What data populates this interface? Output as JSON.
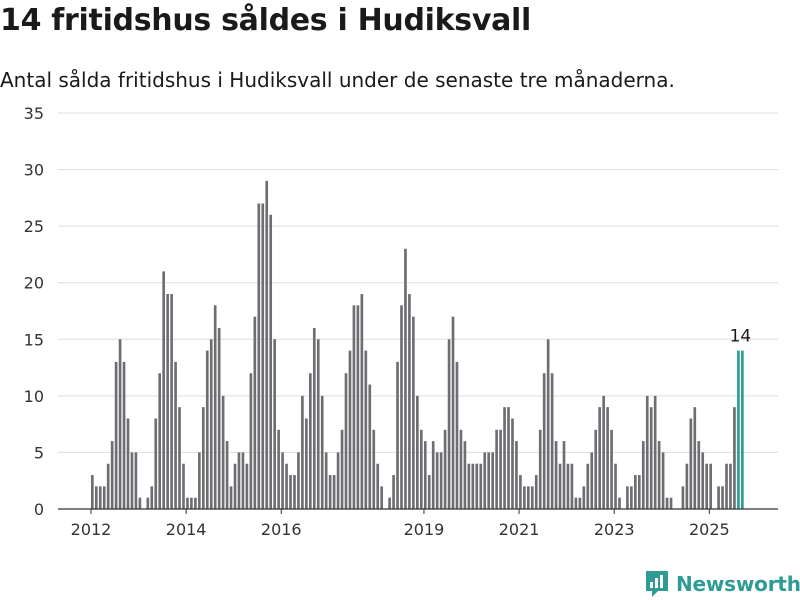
{
  "title": "14 fritidshus såldes i Hudiksvall",
  "subtitle": "Antal sålda fritidshus i Hudiksvall under de senaste tre månaderna.",
  "brand": "Newsworthy",
  "colors": {
    "bar": "#6e6d72",
    "highlight": "#2a9d97",
    "grid": "#dddddd",
    "brand": "#2e9c95"
  },
  "chart_data": {
    "type": "bar",
    "title": "14 fritidshus såldes i Hudiksvall",
    "subtitle": "Antal sålda fritidshus i Hudiksvall under de senaste tre månaderna.",
    "xlabel": "",
    "ylabel": "",
    "ylim": [
      0,
      35
    ],
    "yticks": [
      0,
      5,
      10,
      15,
      20,
      25,
      30,
      35
    ],
    "xticks": [
      "2012",
      "2014",
      "2016",
      "2019",
      "2021",
      "2023",
      "2025"
    ],
    "grid": true,
    "period": "monthly, rolling 3 months",
    "start": "2012-01",
    "values": [
      3,
      2,
      2,
      2,
      4,
      6,
      13,
      15,
      13,
      8,
      5,
      5,
      1,
      0,
      1,
      2,
      8,
      12,
      21,
      19,
      19,
      13,
      9,
      4,
      1,
      1,
      1,
      5,
      9,
      14,
      15,
      18,
      16,
      10,
      6,
      2,
      4,
      5,
      5,
      4,
      12,
      17,
      27,
      27,
      29,
      26,
      15,
      7,
      5,
      4,
      3,
      3,
      5,
      10,
      8,
      12,
      16,
      15,
      10,
      5,
      3,
      3,
      5,
      7,
      12,
      14,
      18,
      18,
      19,
      14,
      11,
      7,
      4,
      2,
      0,
      1,
      3,
      13,
      18,
      23,
      19,
      17,
      10,
      7,
      6,
      3,
      6,
      5,
      5,
      7,
      15,
      17,
      13,
      7,
      6,
      4,
      4,
      4,
      4,
      5,
      5,
      5,
      7,
      7,
      9,
      9,
      8,
      6,
      3,
      2,
      2,
      2,
      3,
      7,
      12,
      15,
      12,
      6,
      4,
      6,
      4,
      4,
      1,
      1,
      2,
      4,
      5,
      7,
      9,
      10,
      9,
      7,
      4,
      1,
      0,
      2,
      2,
      3,
      3,
      6,
      10,
      9,
      10,
      6,
      5,
      1,
      1,
      0,
      0,
      2,
      4,
      8,
      9,
      6,
      5,
      4,
      4,
      0,
      2,
      2,
      4,
      4,
      9,
      14,
      14
    ],
    "annotations": [
      {
        "label": "14",
        "value": 14,
        "note": "latest"
      }
    ]
  }
}
